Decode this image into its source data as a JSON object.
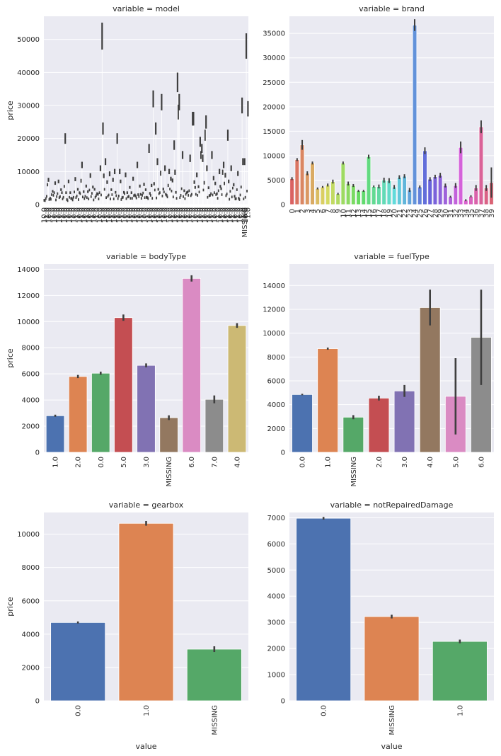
{
  "palette": [
    "#4c72b0",
    "#dd8452",
    "#55a868",
    "#c44e52",
    "#8172b3",
    "#937860",
    "#da8bc3",
    "#8c8c8c",
    "#ccb974",
    "#64b5cd"
  ],
  "axis_colors": {
    "panel_bg": "#eaeaf2",
    "grid": "#ffffff",
    "errorbar": "#3f3f3f"
  },
  "chart_data": [
    {
      "type": "bar",
      "title": "variable = model",
      "ylabel": "price",
      "xlabel": "",
      "ylim": [
        0,
        57000
      ],
      "yticks": [
        0,
        10000,
        20000,
        30000,
        40000,
        50000
      ],
      "n_categories": 249,
      "categories_note_last": "MISSING",
      "values": [
        1300,
        1200,
        1800,
        2500,
        6000,
        7500,
        1500,
        1900,
        1600,
        3000,
        4000,
        2800,
        3600,
        6500,
        1400,
        2400,
        3300,
        7000,
        2100,
        2400,
        4500,
        3600,
        1700,
        2200,
        5500,
        20000,
        3600,
        1500,
        1200,
        7000,
        2200,
        3600,
        1900,
        1800,
        1400,
        2200,
        3800,
        7700,
        2100,
        2600,
        4600,
        1500,
        3600,
        3300,
        7200,
        12000,
        2300,
        3900,
        1800,
        2500,
        5600,
        2100,
        3900,
        1700,
        4400,
        8800,
        2400,
        3400,
        5300,
        1400,
        4600,
        2200,
        2700,
        3300,
        3100,
        1700,
        3600,
        11000,
        2900,
        51000,
        23000,
        8700,
        4600,
        13000,
        2100,
        6800,
        2500,
        2900,
        9300,
        1700,
        4500,
        3000,
        7500,
        1700,
        10000,
        3700,
        2700,
        20000,
        1800,
        2600,
        10000,
        7000,
        1500,
        2100,
        2200,
        3700,
        3300,
        9000,
        1800,
        3600,
        2300,
        2500,
        5200,
        1900,
        3600,
        1900,
        7800,
        2700,
        2900,
        2600,
        2000,
        12000,
        3000,
        2400,
        5600,
        3100,
        1900,
        2800,
        3500,
        6100,
        2100,
        4500,
        2200,
        2100,
        1800,
        17000,
        3400,
        2800,
        5800,
        1900,
        32000,
        6300,
        4400,
        23000,
        2000,
        13000,
        4600,
        3300,
        3600,
        9500,
        31000,
        2600,
        4700,
        3800,
        11000,
        3100,
        2800,
        2300,
        5800,
        10000,
        4700,
        7800,
        4100,
        7300,
        2300,
        18000,
        9800,
        3700,
        1900,
        37000,
        28000,
        31000,
        2100,
        2800,
        4800,
        15000,
        2400,
        4200,
        1800,
        3100,
        3600,
        3800,
        2800,
        4200,
        14000,
        2700,
        3100,
        26000,
        26000,
        6800,
        5200,
        3100,
        9000,
        2800,
        5400,
        3800,
        19000,
        15000,
        17000,
        14000,
        4400,
        6600,
        21000,
        25000,
        11000,
        2200,
        5100,
        2700,
        2800,
        3300,
        15000,
        2900,
        8000,
        3600,
        6400,
        3000,
        3300,
        1900,
        4200,
        10000,
        5500,
        4800,
        3000,
        9800,
        12000,
        6400,
        8900,
        2700,
        3200,
        21000,
        7000,
        1600,
        4000,
        11000,
        2300,
        5000,
        6000,
        2500,
        1700,
        1800,
        4500,
        9400,
        1900,
        1500,
        2900,
        5300,
        30000,
        13000,
        1700,
        13000,
        2200,
        48000,
        4100,
        29000
      ]
    },
    {
      "type": "bar",
      "title": "variable = brand",
      "ylabel": "",
      "xlabel": "",
      "ylim": [
        0,
        38500
      ],
      "yticks": [
        0,
        5000,
        10000,
        15000,
        20000,
        25000,
        30000,
        35000
      ],
      "categories": [
        "0",
        "1",
        "2",
        "3",
        "4",
        "5",
        "6",
        "7",
        "8",
        "9",
        "10",
        "11",
        "12",
        "13",
        "14",
        "15",
        "16",
        "17",
        "18",
        "19",
        "20",
        "21",
        "22",
        "23",
        "24",
        "25",
        "26",
        "27",
        "28",
        "29",
        "30",
        "31",
        "32",
        "33",
        "34",
        "35",
        "36",
        "37",
        "38",
        "39"
      ],
      "values": [
        5300,
        9200,
        12200,
        6400,
        8500,
        3300,
        3600,
        4000,
        4700,
        2200,
        8500,
        4300,
        3900,
        2800,
        2800,
        9800,
        3700,
        3700,
        5000,
        4900,
        3600,
        5600,
        5800,
        3000,
        36700,
        3600,
        11000,
        5200,
        5700,
        6000,
        3900,
        1600,
        3900,
        11700,
        900,
        1700,
        3400,
        15900,
        3400,
        4500
      ],
      "errors": [
        300,
        300,
        1000,
        400,
        300,
        200,
        200,
        300,
        400,
        200,
        300,
        400,
        300,
        200,
        200,
        400,
        200,
        400,
        500,
        500,
        400,
        400,
        400,
        400,
        1200,
        300,
        700,
        400,
        400,
        500,
        400,
        200,
        500,
        1200,
        200,
        200,
        600,
        1300,
        600,
        3100
      ]
    },
    {
      "type": "bar",
      "title": "variable = bodyType",
      "ylabel": "price",
      "xlabel": "",
      "ylim": [
        0,
        14400
      ],
      "yticks": [
        0,
        2000,
        4000,
        6000,
        8000,
        10000,
        12000,
        14000
      ],
      "categories": [
        "1.0",
        "2.0",
        "0.0",
        "5.0",
        "3.0",
        "MISSING",
        "6.0",
        "7.0",
        "4.0"
      ],
      "values": [
        2800,
        5800,
        6050,
        10300,
        6650,
        2650,
        13300,
        4050,
        9700
      ],
      "errors": [
        80,
        120,
        120,
        240,
        150,
        180,
        240,
        300,
        180
      ]
    },
    {
      "type": "bar",
      "title": "variable = fuelType",
      "ylabel": "",
      "xlabel": "",
      "ylim": [
        0,
        15800
      ],
      "yticks": [
        0,
        2000,
        4000,
        6000,
        8000,
        10000,
        12000,
        14000
      ],
      "categories": [
        "0.0",
        "1.0",
        "MISSING",
        "2.0",
        "3.0",
        "4.0",
        "5.0",
        "6.0"
      ],
      "values": [
        4850,
        8700,
        2950,
        4550,
        5150,
        12150,
        4700,
        9650
      ],
      "errors": [
        60,
        90,
        170,
        200,
        500,
        1500,
        3200,
        4000
      ]
    },
    {
      "type": "bar",
      "title": "variable = gearbox",
      "ylabel": "price",
      "xlabel": "value",
      "ylim": [
        0,
        11300
      ],
      "yticks": [
        0,
        2000,
        4000,
        6000,
        8000,
        10000
      ],
      "categories": [
        "0.0",
        "1.0",
        "MISSING"
      ],
      "values": [
        4700,
        10650,
        3100
      ],
      "errors": [
        60,
        140,
        170
      ]
    },
    {
      "type": "bar",
      "title": "variable = notRepairedDamage",
      "ylabel": "",
      "xlabel": "value",
      "ylim": [
        0,
        7200
      ],
      "yticks": [
        0,
        1000,
        2000,
        3000,
        4000,
        5000,
        6000,
        7000
      ],
      "categories": [
        "0.0",
        "MISSING",
        "1.0"
      ],
      "values": [
        6980,
        3220,
        2270
      ],
      "errors": [
        50,
        70,
        70
      ]
    }
  ]
}
